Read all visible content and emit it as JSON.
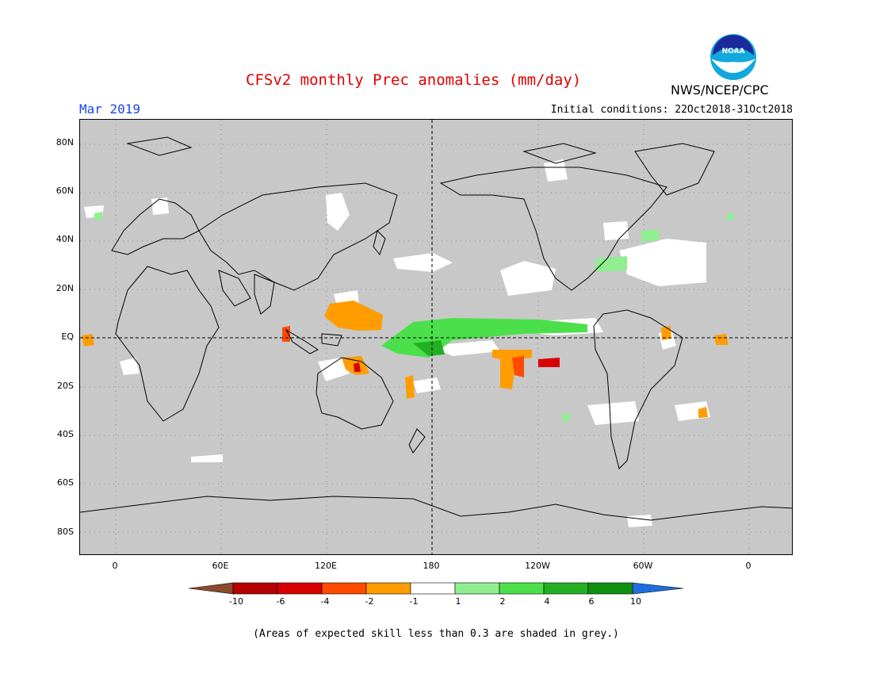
{
  "header": {
    "title": "CFSv2 monthly Prec anomalies (mm/day)",
    "month": "Mar 2019",
    "initial_conditions": "Initial conditions: 22Oct2018-31Oct2018",
    "agency": "NWS/NCEP/CPC",
    "logo_text": "NOAA"
  },
  "map": {
    "y_ticks": [
      "80N",
      "60N",
      "40N",
      "20N",
      "EQ",
      "20S",
      "40S",
      "60S",
      "80S"
    ],
    "x_ticks": [
      "0",
      "60E",
      "120E",
      "180",
      "120W",
      "60W",
      "0"
    ],
    "background_color": "#c8c8c8"
  },
  "legend": {
    "labels": [
      "-10",
      "-6",
      "-4",
      "-2",
      "-1",
      "1",
      "2",
      "4",
      "6",
      "10"
    ],
    "colors": [
      "#8b4a2a",
      "#b40000",
      "#d80000",
      "#ff4a00",
      "#ff9d00",
      "#ffffff",
      "#90ee90",
      "#4be04b",
      "#22b022",
      "#109010",
      "#1f6ee0"
    ]
  },
  "footnote": "(Areas of expected skill less than 0.3 are shaded in grey.)"
}
